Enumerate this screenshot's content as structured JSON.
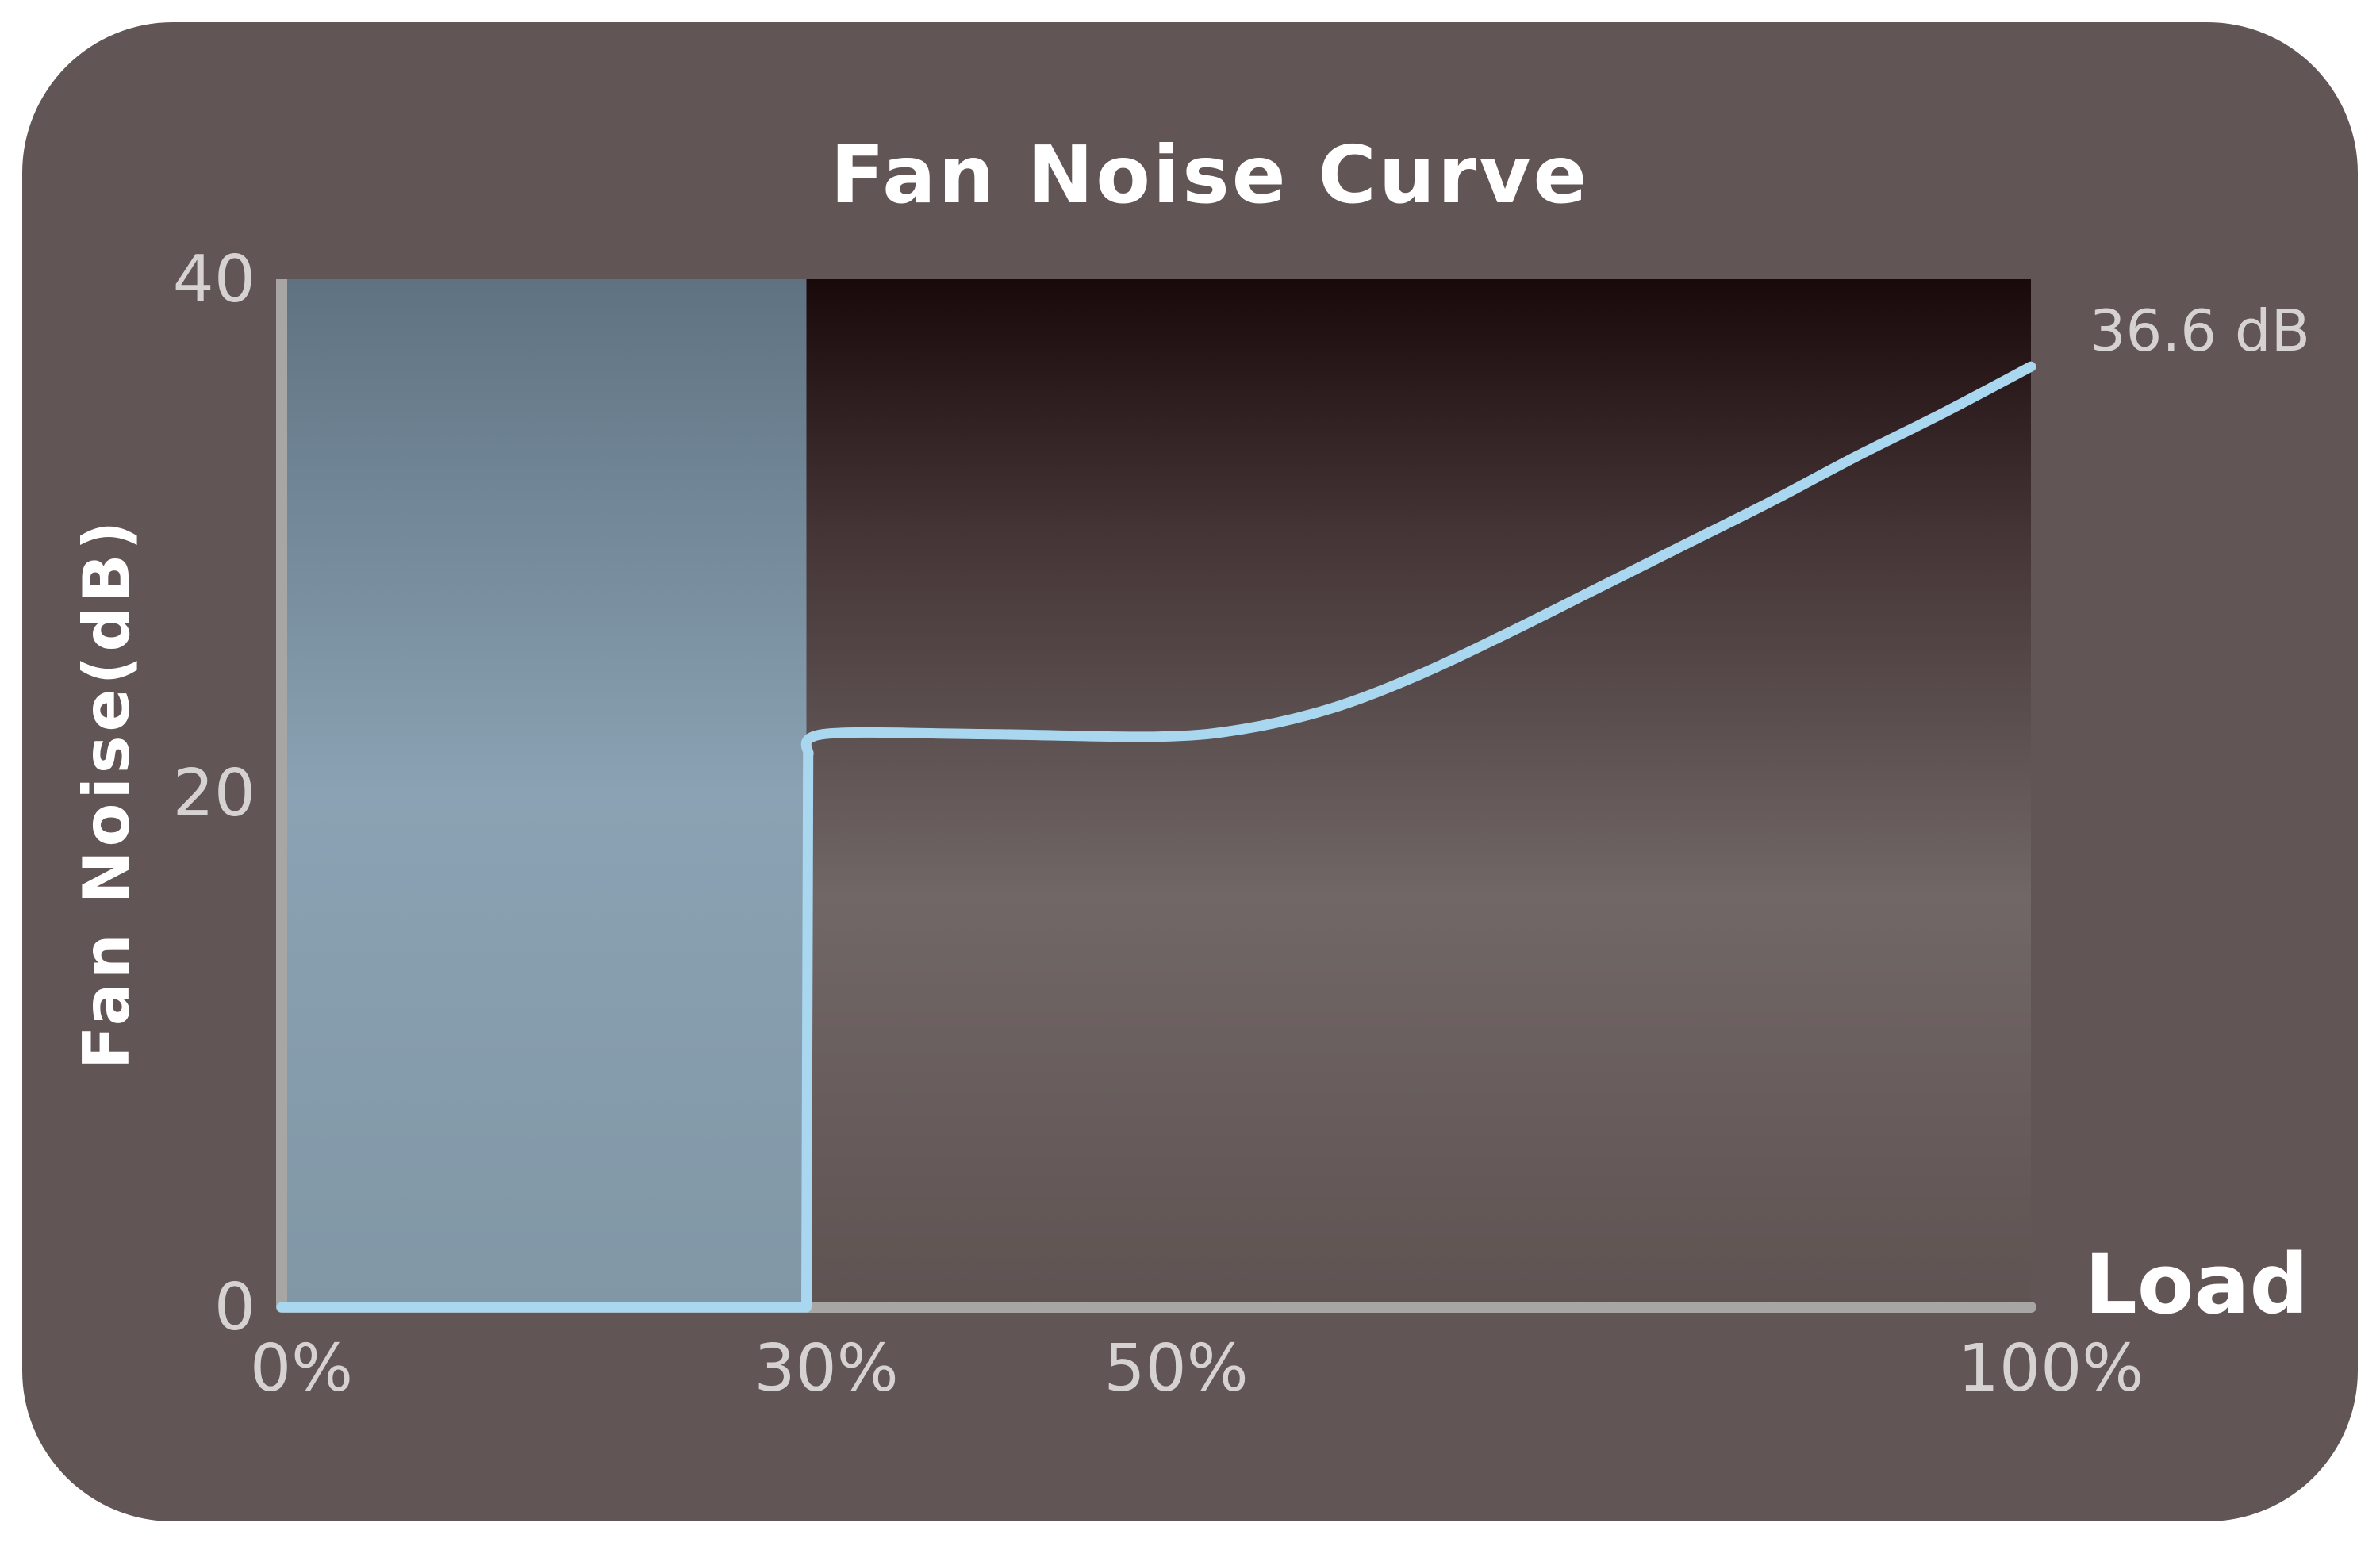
{
  "chart_data": {
    "type": "line",
    "title": "Fan Noise Curve",
    "xlabel": "Load",
    "ylabel": "Fan Noise(dB)",
    "x_unit": "%",
    "xlim": [
      0,
      100
    ],
    "ylim": [
      0,
      40
    ],
    "x_ticks": [
      "0%",
      "30%",
      "50%",
      "100%"
    ],
    "y_ticks": [
      "0",
      "20",
      "40"
    ],
    "series": [
      {
        "x": [
          0,
          10,
          20,
          30,
          30.1,
          31,
          40,
          50,
          55,
          60,
          65,
          70,
          75,
          80,
          85,
          90,
          95,
          100
        ],
        "y": [
          0,
          0,
          0,
          0,
          21.5,
          22.3,
          22.3,
          22.2,
          22.5,
          23.3,
          24.6,
          26.2,
          27.9,
          29.6,
          31.3,
          33.1,
          34.8,
          36.6
        ]
      }
    ],
    "highlight_region": {
      "x": [
        0,
        30
      ]
    },
    "annotations": [
      {
        "x": 100,
        "y": 36.6,
        "text": "36.6 dB"
      }
    ],
    "grid": false,
    "legend": "none",
    "colors": {
      "card_background": "#625555",
      "line": "#a9d7f0",
      "axis": "#a8a5a5",
      "highlight_top": "#5f7282",
      "highlight_bottom": "#87a0b3",
      "plot_top": "#1a090b",
      "plot_mid": "#716766",
      "tick_text": "#d6d2d2",
      "title_text": "#ffffff"
    }
  }
}
